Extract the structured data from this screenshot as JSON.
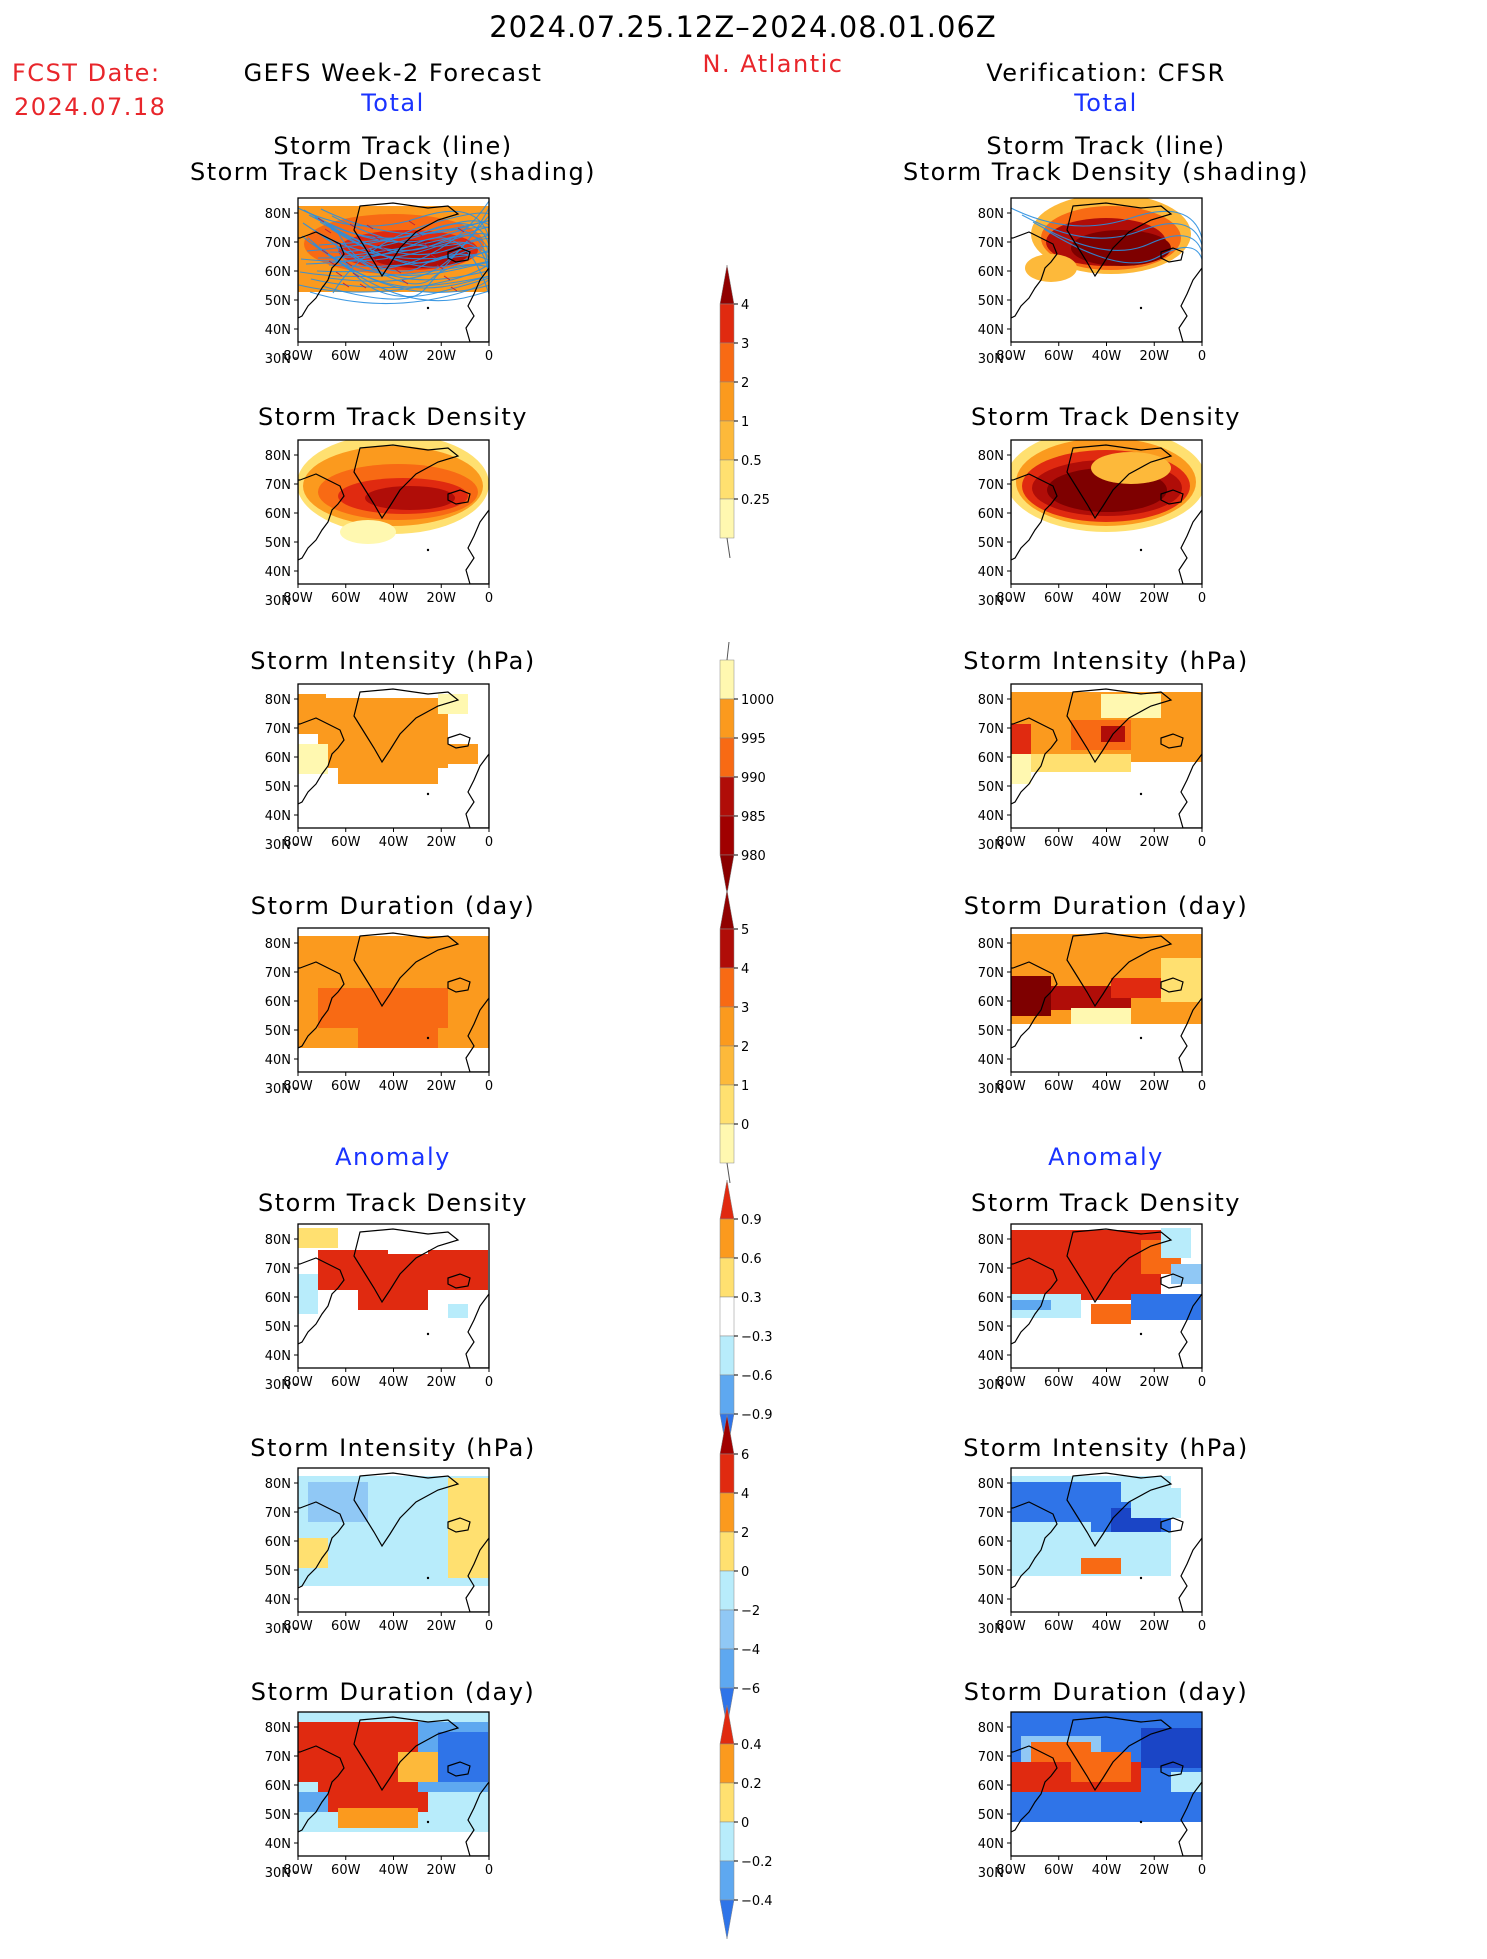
{
  "header": {
    "date_range": "2024.07.25.12Z–2024.08.01.06Z",
    "region": "N. Atlantic",
    "fcst_label": "FCST Date:",
    "fcst_date": "2024.07.18",
    "left_title": "GEFS Week-2 Forecast",
    "right_title": "Verification: CFSR",
    "total_label": "Total",
    "anomaly_label": "Anomaly"
  },
  "panel_titles": {
    "track_line": "Storm Track (line)",
    "track_shading": "Storm Track Density (shading)",
    "density": "Storm Track Density",
    "intensity": "Storm Intensity (hPa)",
    "duration": "Storm Duration (day)"
  },
  "axes": {
    "lat_ticks": [
      "80N",
      "70N",
      "60N",
      "50N",
      "40N",
      "30N"
    ],
    "lon_ticks": [
      "80W",
      "60W",
      "40W",
      "20W",
      "0"
    ]
  },
  "colorbars": {
    "density_total": [
      "4",
      "3",
      "2",
      "1",
      "0.5",
      "0.25"
    ],
    "intensity_total": [
      "1000",
      "995",
      "990",
      "985",
      "980"
    ],
    "duration_total": [
      "5",
      "4",
      "3",
      "2",
      "1",
      "0"
    ],
    "density_anom": [
      "0.9",
      "0.6",
      "0.3",
      "−0.3",
      "−0.6",
      "−0.9"
    ],
    "intensity_anom": [
      "6",
      "4",
      "2",
      "0",
      "−2",
      "−4",
      "−6"
    ],
    "duration_anom": [
      "0.4",
      "0.2",
      "0",
      "−0.2",
      "−0.4"
    ]
  },
  "colors": {
    "title_red": "#e8262b",
    "title_blue": "#1a33ff",
    "warm_scale": [
      "#fff8b0",
      "#ffe070",
      "#fdb93a",
      "#fb9a1e",
      "#f86a14",
      "#e02a10",
      "#b00d08",
      "#7e0000"
    ],
    "cool_scale": [
      "#b8ecfb",
      "#90c8f5",
      "#5ea8f0",
      "#2f74e8",
      "#1a45c6"
    ],
    "track_line": "#2a8fe0"
  }
}
